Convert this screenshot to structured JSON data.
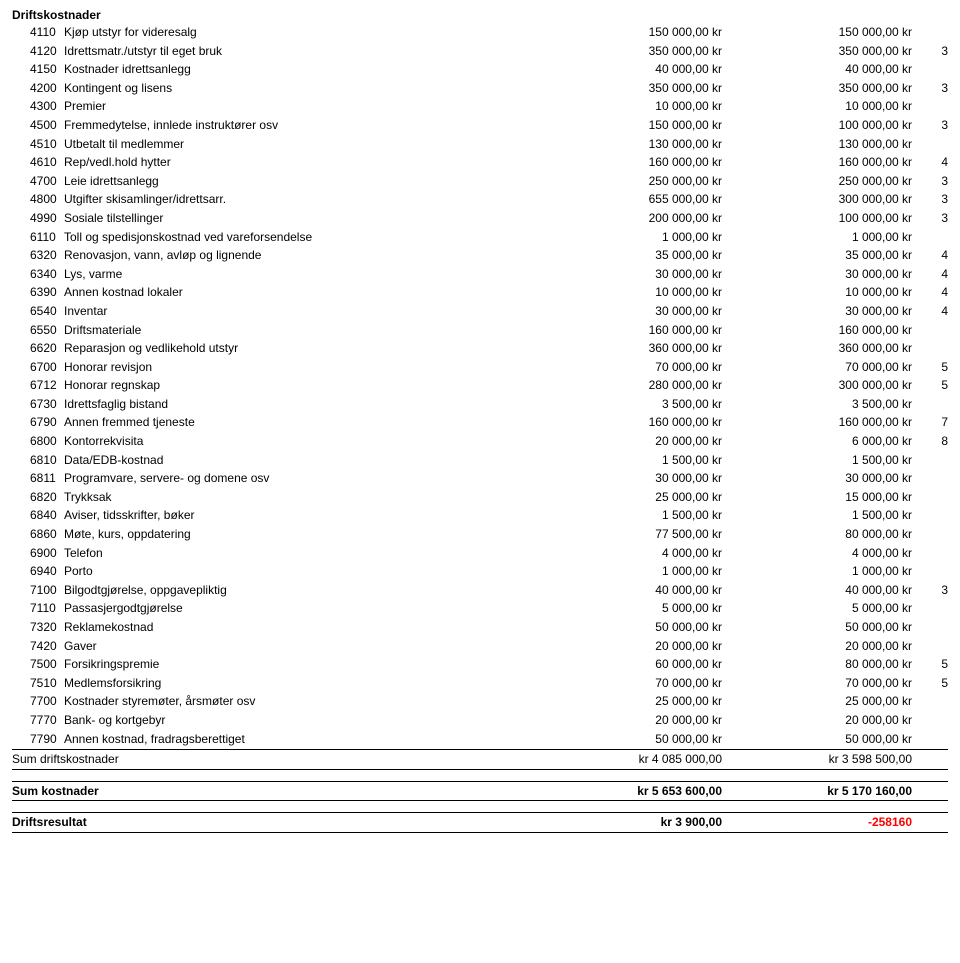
{
  "section_title": "Driftskostnader",
  "rows": [
    {
      "code": "4110",
      "desc": "Kjøp utstyr for videresalg",
      "c1": "150 000,00 kr",
      "c2": "150 000,00 kr",
      "note": ""
    },
    {
      "code": "4120",
      "desc": "Idrettsmatr./utstyr til eget bruk",
      "c1": "350 000,00 kr",
      "c2": "350 000,00 kr",
      "note": "3"
    },
    {
      "code": "4150",
      "desc": "Kostnader idrettsanlegg",
      "c1": "40 000,00 kr",
      "c2": "40 000,00 kr",
      "note": ""
    },
    {
      "code": "4200",
      "desc": "Kontingent og lisens",
      "c1": "350 000,00 kr",
      "c2": "350 000,00 kr",
      "note": "3"
    },
    {
      "code": "4300",
      "desc": "Premier",
      "c1": "10 000,00 kr",
      "c2": "10 000,00 kr",
      "note": ""
    },
    {
      "code": "4500",
      "desc": "Fremmedytelse, innlede instruktører osv",
      "c1": "150 000,00 kr",
      "c2": "100 000,00 kr",
      "note": "3"
    },
    {
      "code": "4510",
      "desc": "Utbetalt til medlemmer",
      "c1": "130 000,00 kr",
      "c2": "130 000,00 kr",
      "note": ""
    },
    {
      "code": "4610",
      "desc": "Rep/vedl.hold hytter",
      "c1": "160 000,00 kr",
      "c2": "160 000,00 kr",
      "note": "4"
    },
    {
      "code": "4700",
      "desc": "Leie idrettsanlegg",
      "c1": "250 000,00 kr",
      "c2": "250 000,00 kr",
      "note": "3"
    },
    {
      "code": "4800",
      "desc": "Utgifter skisamlinger/idrettsarr.",
      "c1": "655 000,00 kr",
      "c2": "300 000,00 kr",
      "note": "3"
    },
    {
      "code": "4990",
      "desc": "Sosiale tilstellinger",
      "c1": "200 000,00 kr",
      "c2": "100 000,00 kr",
      "note": "3"
    },
    {
      "code": "6110",
      "desc": "Toll og spedisjonskostnad ved vareforsendelse",
      "c1": "1 000,00 kr",
      "c2": "1 000,00 kr",
      "note": ""
    },
    {
      "code": "6320",
      "desc": "Renovasjon, vann, avløp og lignende",
      "c1": "35 000,00 kr",
      "c2": "35 000,00 kr",
      "note": "4"
    },
    {
      "code": "6340",
      "desc": "Lys, varme",
      "c1": "30 000,00 kr",
      "c2": "30 000,00 kr",
      "note": "4"
    },
    {
      "code": "6390",
      "desc": "Annen kostnad lokaler",
      "c1": "10 000,00 kr",
      "c2": "10 000,00 kr",
      "note": "4"
    },
    {
      "code": "6540",
      "desc": "Inventar",
      "c1": "30 000,00 kr",
      "c2": "30 000,00 kr",
      "note": "4"
    },
    {
      "code": "6550",
      "desc": "Driftsmateriale",
      "c1": "160 000,00 kr",
      "c2": "160 000,00 kr",
      "note": ""
    },
    {
      "code": "6620",
      "desc": "Reparasjon og vedlikehold utstyr",
      "c1": "360 000,00 kr",
      "c2": "360 000,00 kr",
      "note": ""
    },
    {
      "code": "6700",
      "desc": "Honorar revisjon",
      "c1": "70 000,00 kr",
      "c2": "70 000,00 kr",
      "note": "5"
    },
    {
      "code": "6712",
      "desc": "Honorar regnskap",
      "c1": "280 000,00 kr",
      "c2": "300 000,00 kr",
      "note": "5"
    },
    {
      "code": "6730",
      "desc": "Idrettsfaglig bistand",
      "c1": "3 500,00 kr",
      "c2": "3 500,00 kr",
      "note": ""
    },
    {
      "code": "6790",
      "desc": "Annen fremmed tjeneste",
      "c1": "160 000,00 kr",
      "c2": "160 000,00 kr",
      "note": "7"
    },
    {
      "code": "6800",
      "desc": "Kontorrekvisita",
      "c1": "20 000,00 kr",
      "c2": "6 000,00 kr",
      "note": "8"
    },
    {
      "code": "6810",
      "desc": "Data/EDB-kostnad",
      "c1": "1 500,00 kr",
      "c2": "1 500,00 kr",
      "note": ""
    },
    {
      "code": "6811",
      "desc": "Programvare, servere- og domene osv",
      "c1": "30 000,00 kr",
      "c2": "30 000,00 kr",
      "note": ""
    },
    {
      "code": "6820",
      "desc": "Trykksak",
      "c1": "25 000,00 kr",
      "c2": "15 000,00 kr",
      "note": ""
    },
    {
      "code": "6840",
      "desc": "Aviser, tidsskrifter, bøker",
      "c1": "1 500,00 kr",
      "c2": "1 500,00 kr",
      "note": ""
    },
    {
      "code": "6860",
      "desc": "Møte, kurs, oppdatering",
      "c1": "77 500,00 kr",
      "c2": "80 000,00 kr",
      "note": ""
    },
    {
      "code": "6900",
      "desc": "Telefon",
      "c1": "4 000,00 kr",
      "c2": "4 000,00 kr",
      "note": ""
    },
    {
      "code": "6940",
      "desc": "Porto",
      "c1": "1 000,00 kr",
      "c2": "1 000,00 kr",
      "note": ""
    },
    {
      "code": "7100",
      "desc": "Bilgodtgjørelse, oppgavepliktig",
      "c1": "40 000,00 kr",
      "c2": "40 000,00 kr",
      "note": "3"
    },
    {
      "code": "7110",
      "desc": "Passasjergodtgjørelse",
      "c1": "5 000,00 kr",
      "c2": "5 000,00 kr",
      "note": ""
    },
    {
      "code": "7320",
      "desc": "Reklamekostnad",
      "c1": "50 000,00 kr",
      "c2": "50 000,00 kr",
      "note": ""
    },
    {
      "code": "7420",
      "desc": "Gaver",
      "c1": "20 000,00 kr",
      "c2": "20 000,00 kr",
      "note": ""
    },
    {
      "code": "7500",
      "desc": "Forsikringspremie",
      "c1": "60 000,00 kr",
      "c2": "80 000,00 kr",
      "note": "5"
    },
    {
      "code": "7510",
      "desc": "Medlemsforsikring",
      "c1": "70 000,00 kr",
      "c2": "70 000,00 kr",
      "note": "5"
    },
    {
      "code": "7700",
      "desc": "Kostnader styremøter, årsmøter osv",
      "c1": "25 000,00 kr",
      "c2": "25 000,00 kr",
      "note": ""
    },
    {
      "code": "7770",
      "desc": "Bank- og kortgebyr",
      "c1": "20 000,00 kr",
      "c2": "20 000,00 kr",
      "note": ""
    },
    {
      "code": "7790",
      "desc": "Annen kostnad, fradragsberettiget",
      "c1": "50 000,00 kr",
      "c2": "50 000,00 kr",
      "note": ""
    }
  ],
  "sum_drift": {
    "label": "Sum driftskostnader",
    "c1": "kr 4 085 000,00",
    "c2": "kr 3 598 500,00"
  },
  "sum_kost": {
    "label": "Sum kostnader",
    "c1": "kr 5 653 600,00",
    "c2": "kr 5 170 160,00"
  },
  "driftsres": {
    "label": "Driftsresultat",
    "c1": "kr 3 900,00",
    "c2": "-258160"
  }
}
